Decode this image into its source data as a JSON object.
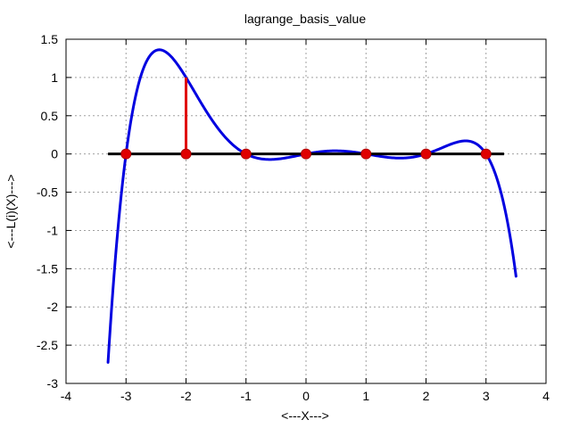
{
  "chart_data": {
    "type": "line",
    "title": "lagrange_basis_value",
    "xlabel": "<---X--->",
    "ylabel": "<---L(i)(X)--->",
    "xlim": [
      -4,
      4
    ],
    "ylim": [
      -3,
      1.5
    ],
    "xticks": [
      -4,
      -3,
      -2,
      -1,
      0,
      1,
      2,
      3,
      4
    ],
    "yticks": [
      -3,
      -2.5,
      -2,
      -1.5,
      -1,
      -0.5,
      0,
      0.5,
      1,
      1.5
    ],
    "grid": true,
    "nodes": [
      -3,
      -2,
      -1,
      0,
      1,
      2,
      3
    ],
    "basis_index_node": -2,
    "x_range": [
      -3.3,
      3.5
    ],
    "series": [
      {
        "role": "basis-polynomial",
        "color": "#0000e0",
        "x": [
          -3.3,
          -3.0,
          -2.75,
          -2.5,
          -2.25,
          -2.0,
          -1.75,
          -1.5,
          -1.25,
          -1.0,
          -0.75,
          -0.5,
          -0.25,
          0.0,
          0.25,
          0.5,
          0.75,
          1.0,
          1.25,
          1.5,
          1.75,
          2.0,
          2.25,
          2.5,
          2.75,
          3.0,
          3.25,
          3.5
        ],
        "y": [
          -2.72,
          0.0,
          1.05,
          1.34,
          1.26,
          1.0,
          0.67,
          0.38,
          0.14,
          0.0,
          -0.06,
          -0.07,
          -0.04,
          0.0,
          0.03,
          0.04,
          0.03,
          0.0,
          -0.03,
          -0.04,
          -0.03,
          0.0,
          0.07,
          0.15,
          0.16,
          0.0,
          -0.55,
          -1.62
        ]
      },
      {
        "role": "zero-line",
        "color": "#000000",
        "x": [
          -3.3,
          3.3
        ],
        "y": [
          0,
          0
        ]
      },
      {
        "role": "stem",
        "color": "#e00000",
        "x": [
          -2,
          -2
        ],
        "y": [
          0,
          1
        ]
      },
      {
        "role": "node-markers",
        "color": "#e00000",
        "x": [
          -3,
          -2,
          -1,
          0,
          1,
          2,
          3
        ],
        "y": [
          0,
          0,
          0,
          0,
          0,
          0,
          0
        ]
      }
    ]
  }
}
